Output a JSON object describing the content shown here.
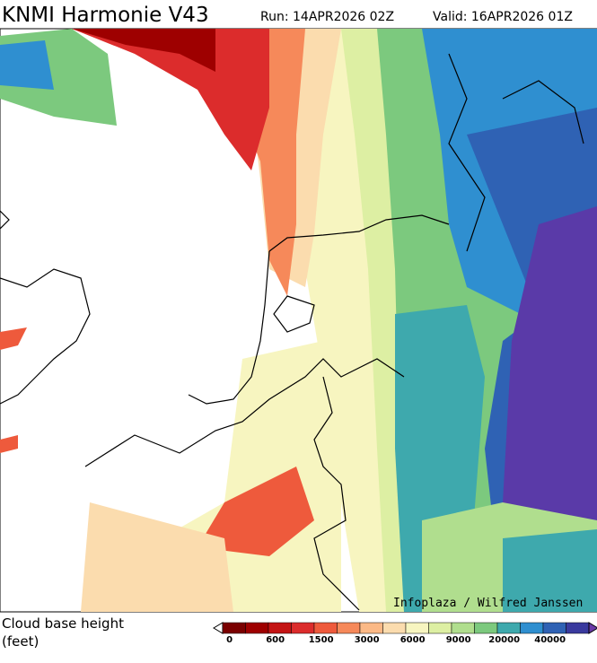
{
  "header": {
    "title": "KNMI Harmonie V43",
    "run": "Run: 14APR2026 02Z",
    "valid": "Valid: 16APR2026 01Z"
  },
  "map": {
    "credit": "Infoplaza / Wilfred Janssen"
  },
  "legend": {
    "title_line1": "Cloud base height",
    "title_line2": "(feet)",
    "colors": [
      "#7a0000",
      "#9e0000",
      "#c41414",
      "#dc2c2c",
      "#ee5a3c",
      "#f6895a",
      "#fbb986",
      "#fbdcae",
      "#f7f5c0",
      "#ddefa3",
      "#b0de8e",
      "#7cc97e",
      "#3ea9ad",
      "#2f8fd0",
      "#2f62b4",
      "#3a3a9e",
      "#6a3aa8"
    ],
    "labels": [
      "0",
      "600",
      "1500",
      "3000",
      "6000",
      "9000",
      "20000",
      "40000"
    ]
  }
}
